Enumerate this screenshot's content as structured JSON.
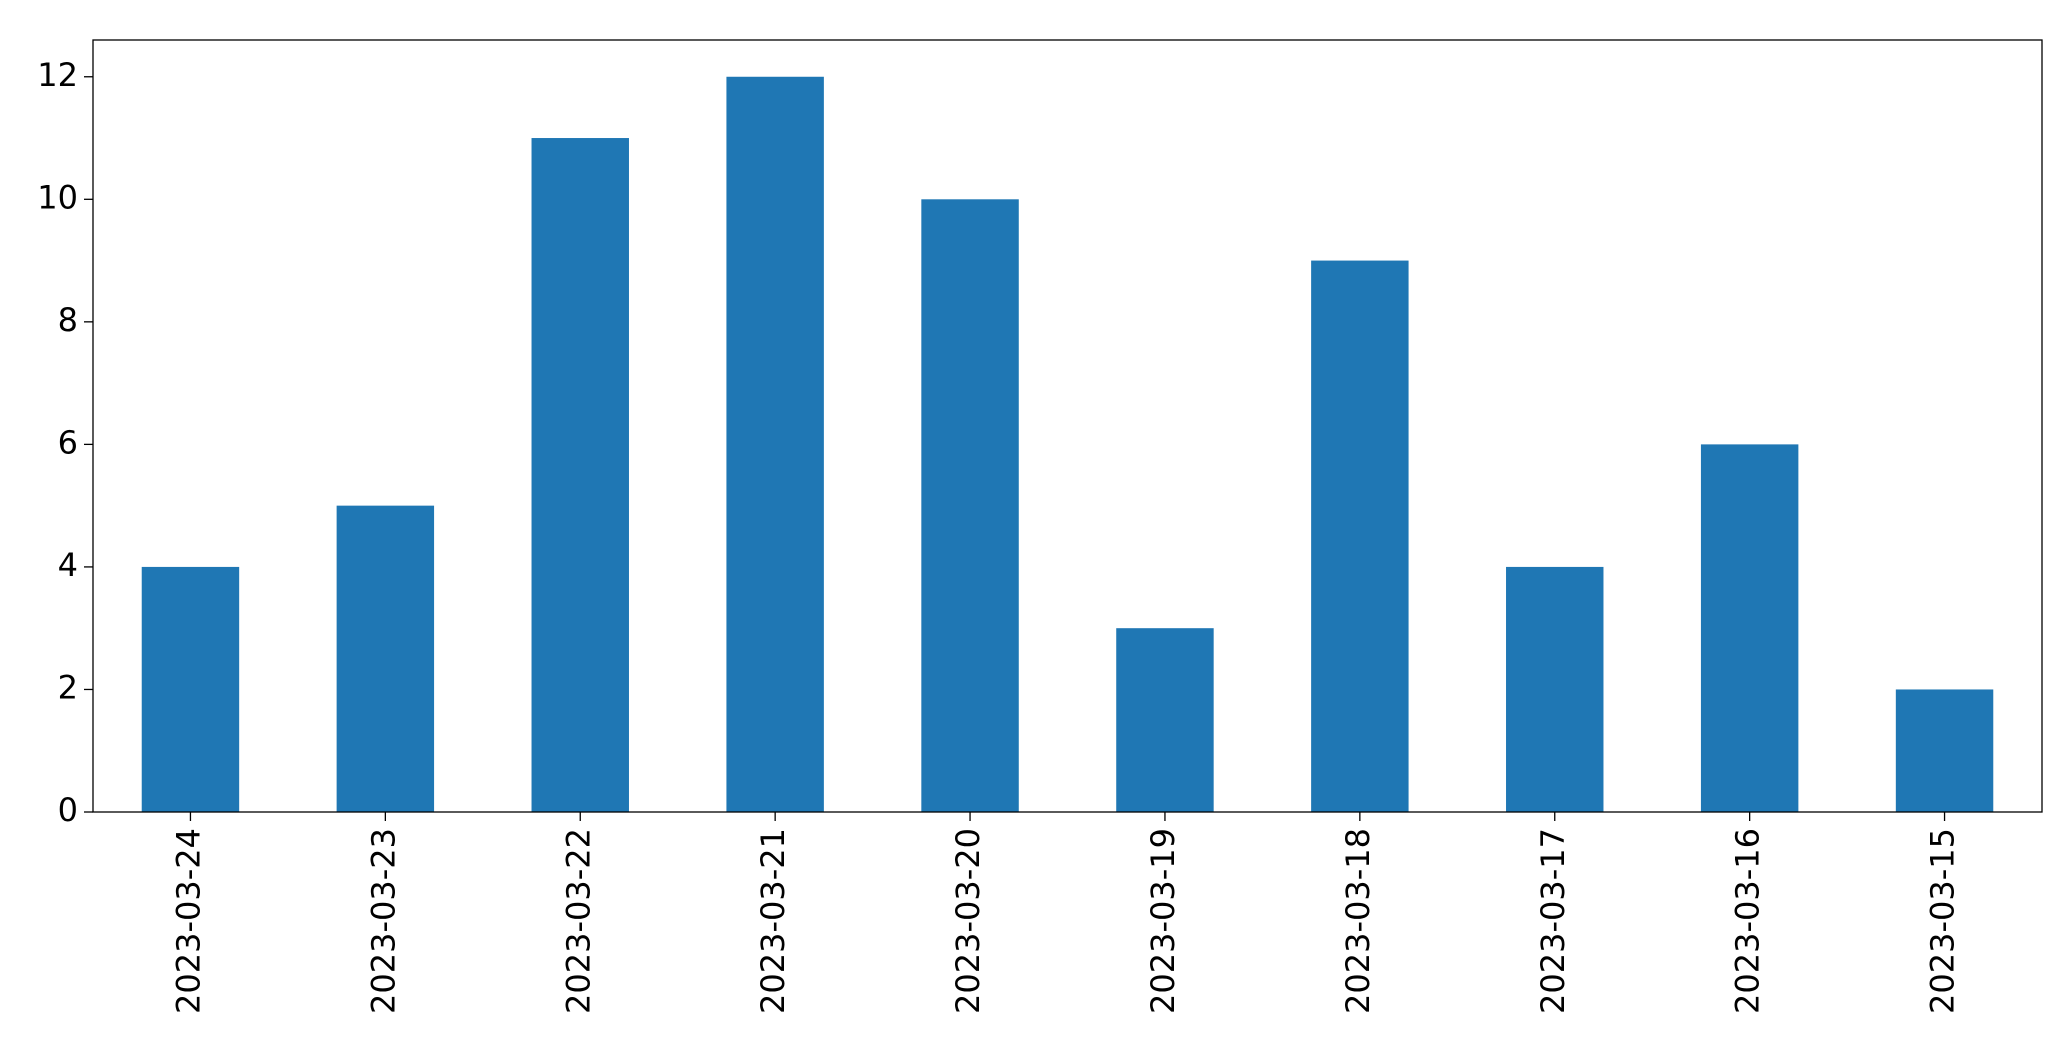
{
  "chart_data": {
    "type": "bar",
    "categories": [
      "2023-03-24",
      "2023-03-23",
      "2023-03-22",
      "2023-03-21",
      "2023-03-20",
      "2023-03-19",
      "2023-03-18",
      "2023-03-17",
      "2023-03-16",
      "2023-03-15"
    ],
    "values": [
      4,
      5,
      11,
      12,
      10,
      3,
      9,
      4,
      6,
      2
    ],
    "color": "#1f77b4",
    "ylim": [
      0,
      12.6
    ],
    "yticks": [
      0,
      2,
      4,
      6,
      8,
      10,
      12
    ],
    "grid": false
  }
}
